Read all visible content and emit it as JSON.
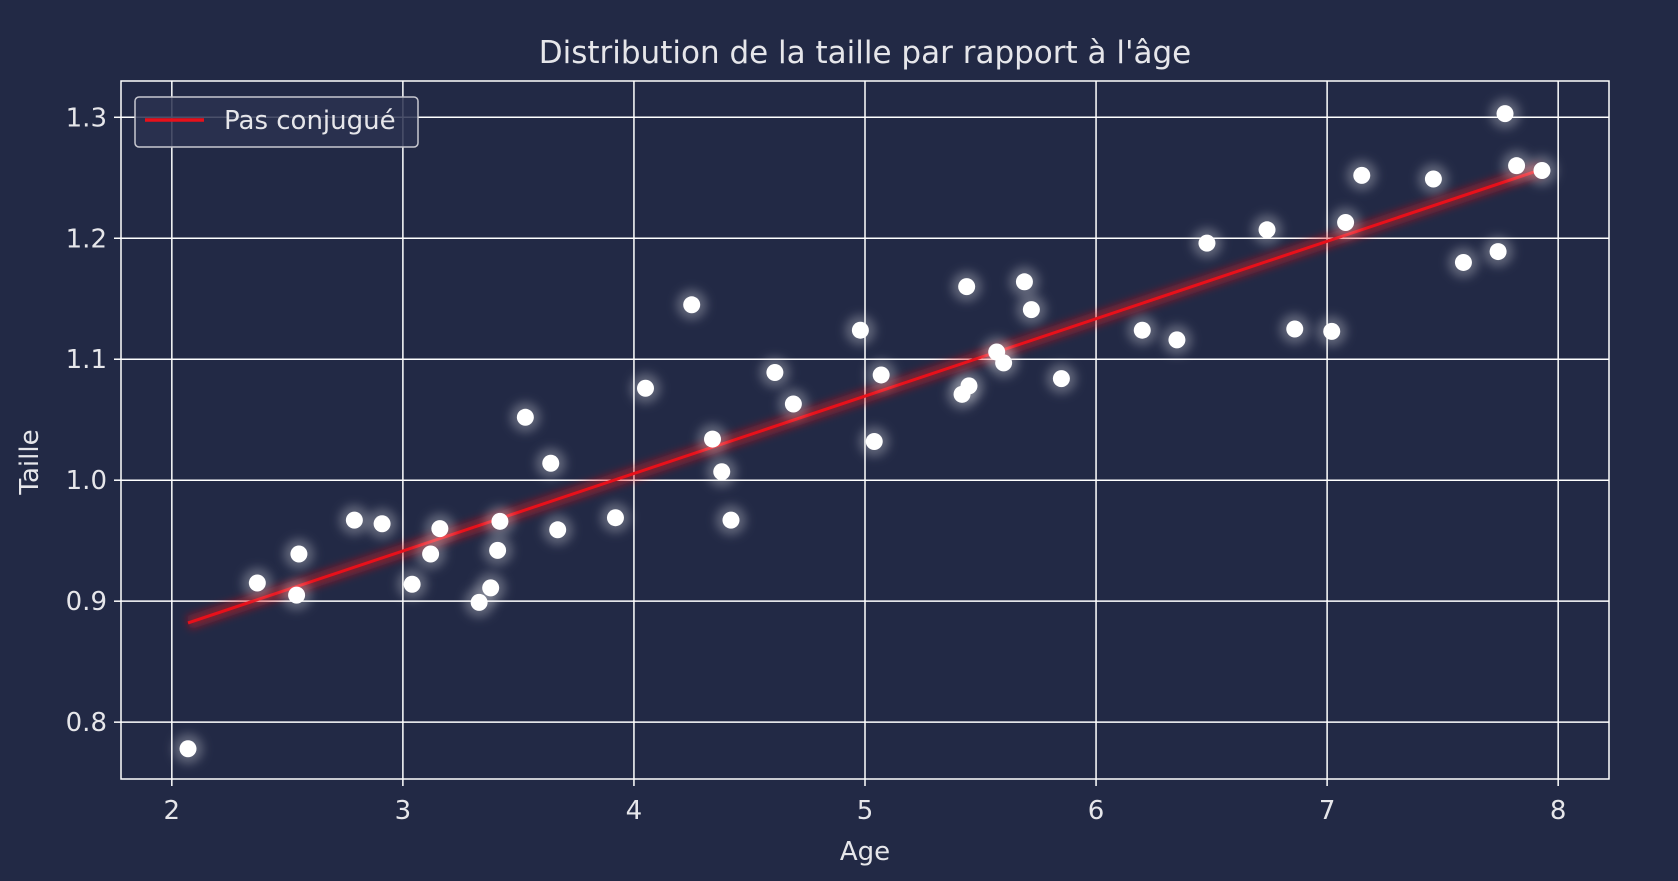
{
  "chart_data": {
    "type": "scatter",
    "title": "Distribution de la taille par rapport à l'âge",
    "xlabel": "Age",
    "ylabel": "Taille",
    "xlim": [
      1.78,
      8.22
    ],
    "ylim": [
      0.753,
      1.33
    ],
    "xticks": [
      2,
      3,
      4,
      5,
      6,
      7,
      8
    ],
    "yticks": [
      0.8,
      0.9,
      1.0,
      1.1,
      1.2,
      1.3
    ],
    "xtick_labels": [
      "2",
      "3",
      "4",
      "5",
      "6",
      "7",
      "8"
    ],
    "ytick_labels": [
      "0.8",
      "0.9",
      "1.0",
      "1.1",
      "1.2",
      "1.3"
    ],
    "grid": true,
    "legend_position": "top-left",
    "colors": {
      "background": "#222945",
      "grid": "#ffffff",
      "points": "#ffffff",
      "line": "#e8101a",
      "text": "#e6e6ea"
    },
    "series": [
      {
        "kind": "scatter",
        "points": [
          [
            2.07,
            0.778
          ],
          [
            2.37,
            0.915
          ],
          [
            2.54,
            0.905
          ],
          [
            2.55,
            0.939
          ],
          [
            2.79,
            0.967
          ],
          [
            2.91,
            0.964
          ],
          [
            3.04,
            0.914
          ],
          [
            3.12,
            0.939
          ],
          [
            3.16,
            0.96
          ],
          [
            3.33,
            0.899
          ],
          [
            3.38,
            0.911
          ],
          [
            3.41,
            0.942
          ],
          [
            3.42,
            0.966
          ],
          [
            3.53,
            1.052
          ],
          [
            3.64,
            1.014
          ],
          [
            3.67,
            0.959
          ],
          [
            3.92,
            0.969
          ],
          [
            4.05,
            1.076
          ],
          [
            4.25,
            1.145
          ],
          [
            4.34,
            1.034
          ],
          [
            4.38,
            1.007
          ],
          [
            4.42,
            0.967
          ],
          [
            4.61,
            1.089
          ],
          [
            4.69,
            1.063
          ],
          [
            4.98,
            1.124
          ],
          [
            5.04,
            1.032
          ],
          [
            5.07,
            1.087
          ],
          [
            5.42,
            1.071
          ],
          [
            5.44,
            1.16
          ],
          [
            5.45,
            1.078
          ],
          [
            5.57,
            1.106
          ],
          [
            5.6,
            1.097
          ],
          [
            5.69,
            1.164
          ],
          [
            5.72,
            1.141
          ],
          [
            5.85,
            1.084
          ],
          [
            6.2,
            1.124
          ],
          [
            6.35,
            1.116
          ],
          [
            6.48,
            1.196
          ],
          [
            6.74,
            1.207
          ],
          [
            6.86,
            1.125
          ],
          [
            7.02,
            1.123
          ],
          [
            7.08,
            1.213
          ],
          [
            7.15,
            1.252
          ],
          [
            7.46,
            1.249
          ],
          [
            7.59,
            1.18
          ],
          [
            7.74,
            1.189
          ],
          [
            7.77,
            1.303
          ],
          [
            7.82,
            1.26
          ],
          [
            7.93,
            1.256
          ]
        ]
      },
      {
        "kind": "line",
        "name": "Pas conjugué",
        "x": [
          2.07,
          7.93
        ],
        "y": [
          0.882,
          1.257
        ]
      }
    ]
  }
}
